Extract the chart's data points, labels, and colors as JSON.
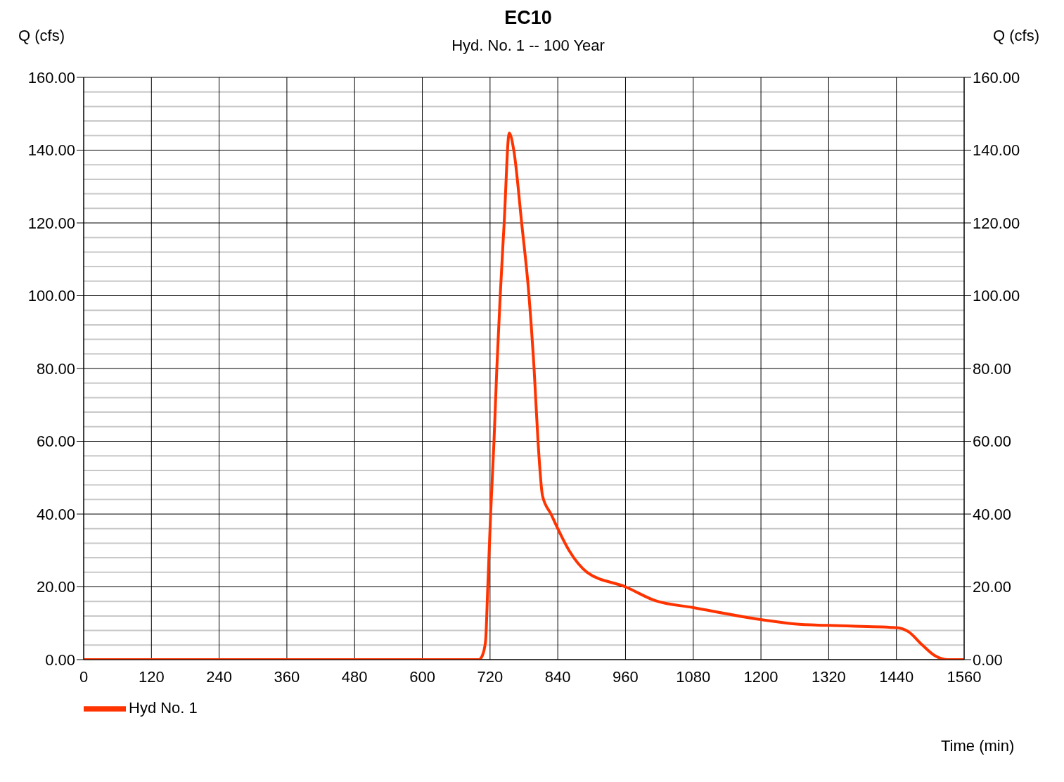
{
  "chart_data": {
    "type": "line",
    "title": "EC10",
    "subtitle": "Hyd. No. 1 -- 100 Year",
    "xlabel": "Time (min)",
    "ylabel": "Q (cfs)",
    "y2label": "Q (cfs)",
    "x": [
      0,
      120,
      240,
      360,
      480,
      600,
      680,
      700,
      706,
      712,
      716,
      721,
      727,
      732,
      738,
      745,
      754,
      762,
      776,
      789,
      798,
      805,
      813,
      828,
      840,
      860,
      892,
      960,
      1013,
      1080,
      1200,
      1260,
      1320,
      1440,
      1461,
      1486,
      1508,
      1530,
      1560
    ],
    "series": [
      {
        "name": "Hyd No. 1",
        "color": "#ff3300",
        "values": [
          0,
          0,
          0,
          0,
          0,
          0,
          0,
          0,
          1,
          5,
          20,
          40,
          60,
          80,
          100,
          120,
          144.7,
          140,
          120,
          100,
          80,
          60,
          45,
          40,
          36,
          30,
          24,
          20,
          16.2,
          14.3,
          11,
          9.8,
          9.4,
          8.8,
          7.7,
          4,
          1.1,
          0,
          0
        ]
      }
    ],
    "xlim": [
      0,
      1560
    ],
    "xticks": [
      0,
      120,
      240,
      360,
      480,
      600,
      720,
      840,
      960,
      1080,
      1200,
      1320,
      1440,
      1560
    ],
    "ylim": [
      0,
      160
    ],
    "yticks": [
      {
        "value": 0,
        "label": "0.00"
      },
      {
        "value": 4,
        "label": null
      },
      {
        "value": 8,
        "label": null
      },
      {
        "value": 12,
        "label": null
      },
      {
        "value": 16,
        "label": null
      },
      {
        "value": 20,
        "label": "20.00"
      },
      {
        "value": 24,
        "label": null
      },
      {
        "value": 28,
        "label": null
      },
      {
        "value": 32,
        "label": null
      },
      {
        "value": 36,
        "label": null
      },
      {
        "value": 40,
        "label": "40.00"
      },
      {
        "value": 44,
        "label": null
      },
      {
        "value": 48,
        "label": null
      },
      {
        "value": 52,
        "label": null
      },
      {
        "value": 56,
        "label": null
      },
      {
        "value": 60,
        "label": "60.00"
      },
      {
        "value": 64,
        "label": null
      },
      {
        "value": 68,
        "label": null
      },
      {
        "value": 72,
        "label": null
      },
      {
        "value": 76,
        "label": null
      },
      {
        "value": 80,
        "label": "80.00"
      },
      {
        "value": 84,
        "label": null
      },
      {
        "value": 88,
        "label": null
      },
      {
        "value": 92,
        "label": null
      },
      {
        "value": 96,
        "label": null
      },
      {
        "value": 100,
        "label": "100.00"
      },
      {
        "value": 104,
        "label": null
      },
      {
        "value": 108,
        "label": null
      },
      {
        "value": 112,
        "label": null
      },
      {
        "value": 116,
        "label": null
      },
      {
        "value": 120,
        "label": "120.00"
      },
      {
        "value": 124,
        "label": null
      },
      {
        "value": 128,
        "label": null
      },
      {
        "value": 132,
        "label": null
      },
      {
        "value": 136,
        "label": null
      },
      {
        "value": 140,
        "label": "140.00"
      },
      {
        "value": 144,
        "label": null
      },
      {
        "value": 148,
        "label": null
      },
      {
        "value": 152,
        "label": null
      },
      {
        "value": 156,
        "label": null
      },
      {
        "value": 160,
        "label": "160.00"
      }
    ],
    "y2lim": [
      0,
      160
    ],
    "y2ticks": [
      {
        "value": 0,
        "label": "0.00"
      },
      {
        "value": 20,
        "label": "20.00"
      },
      {
        "value": 40,
        "label": "40.00"
      },
      {
        "value": 60,
        "label": "60.00"
      },
      {
        "value": 80,
        "label": "80.00"
      },
      {
        "value": 100,
        "label": "100.00"
      },
      {
        "value": 120,
        "label": "120.00"
      },
      {
        "value": 140,
        "label": "140.00"
      },
      {
        "value": 160,
        "label": "160.00"
      }
    ],
    "grid": true,
    "legend": "bottom left",
    "marker": "none",
    "line_style": "solid"
  }
}
